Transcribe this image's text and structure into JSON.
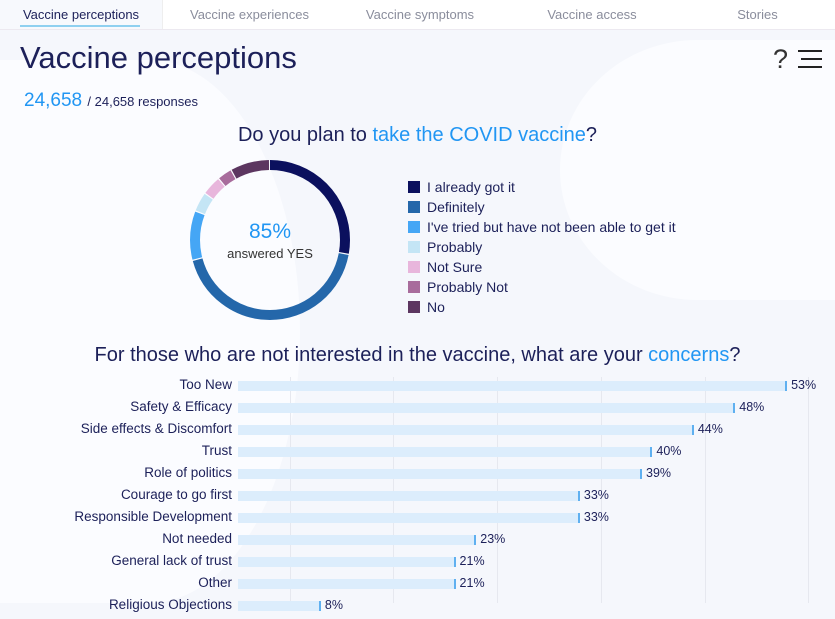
{
  "tabs": [
    "Vaccine perceptions",
    "Vaccine experiences",
    "Vaccine symptoms",
    "Vaccine access",
    "Stories"
  ],
  "header": {
    "title": "Vaccine perceptions",
    "help": "?",
    "responses_count": "24,658",
    "responses_total": "/ 24,658 responses"
  },
  "donut": {
    "question_prefix": "Do you plan to ",
    "question_highlight": "take the COVID vaccine",
    "question_suffix": "?",
    "center_value": "85%",
    "center_label": "answered YES",
    "slices": [
      {
        "label": "I already got it",
        "percent": 28,
        "color": "#0b105e"
      },
      {
        "label": "Definitely",
        "percent": 43,
        "color": "#2467aa"
      },
      {
        "label": "I've tried but have not been able to get it",
        "percent": 10,
        "color": "#45a6f5"
      },
      {
        "label": "Probably",
        "percent": 4,
        "color": "#c4e5f5"
      },
      {
        "label": "Not Sure",
        "percent": 4,
        "color": "#e8b6dc"
      },
      {
        "label": "Probably Not",
        "percent": 3,
        "color": "#a86c9c"
      },
      {
        "label": "No",
        "percent": 8,
        "color": "#5c3660"
      }
    ]
  },
  "concerns": {
    "question_prefix": "For those who are not interested in the vaccine, what are your ",
    "question_highlight": "concerns",
    "question_suffix": "?",
    "chart_data": {
      "type": "bar",
      "orientation": "horizontal",
      "categories": [
        "Too New",
        "Safety & Efficacy",
        "Side effects & Discomfort",
        "Trust",
        "Role of politics",
        "Courage to go first",
        "Responsible Development",
        "Not needed",
        "General lack of trust",
        "Other",
        "Religious Objections"
      ],
      "values": [
        53,
        48,
        44,
        40,
        39,
        33,
        33,
        23,
        21,
        21,
        8
      ],
      "labels": [
        "53%",
        "48%",
        "44%",
        "40%",
        "39%",
        "33%",
        "33%",
        "23%",
        "21%",
        "21%",
        "8%"
      ]
    }
  }
}
